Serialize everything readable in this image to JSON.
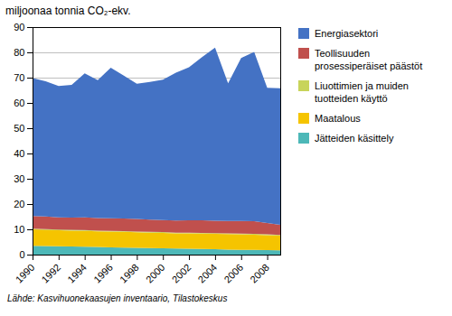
{
  "chart_data": {
    "type": "area",
    "stacked": true,
    "ylabel": "miljoonaa tonnia CO₂-ekv.",
    "source": "Lähde: Kasvihuonekaasujen inventaario,  Tilastokeskus",
    "x": [
      1990,
      1991,
      1992,
      1993,
      1994,
      1995,
      1996,
      1997,
      1998,
      1999,
      2000,
      2001,
      2002,
      2003,
      2004,
      2005,
      2006,
      2007,
      2008,
      2009
    ],
    "xlim": [
      1990,
      2009
    ],
    "xticks": [
      1990,
      1992,
      1994,
      1996,
      1998,
      2000,
      2002,
      2004,
      2006,
      2008
    ],
    "ylim": [
      0,
      90
    ],
    "yticks": [
      0,
      10,
      20,
      30,
      40,
      50,
      60,
      70,
      80,
      90
    ],
    "grid": true,
    "legend": "right",
    "series": [
      {
        "name": "Jätteiden käsittely",
        "color": "#4db8b8",
        "values": [
          3.5,
          3.4,
          3.3,
          3.2,
          3.1,
          3.0,
          2.9,
          2.8,
          2.7,
          2.6,
          2.5,
          2.4,
          2.3,
          2.2,
          2.1,
          2.0,
          1.9,
          1.9,
          1.8,
          1.7
        ]
      },
      {
        "name": "Maatalous",
        "color": "#f5c400",
        "values": [
          6.5,
          6.4,
          6.3,
          6.3,
          6.3,
          6.2,
          6.2,
          6.2,
          6.1,
          6.1,
          6.1,
          6.0,
          6.1,
          6.1,
          6.1,
          6.1,
          6.1,
          6.0,
          5.9,
          5.8
        ]
      },
      {
        "name": "Liuottimien ja muiden\ntuotteiden käyttö",
        "color": "#c8d45a",
        "values": [
          0.3,
          0.3,
          0.3,
          0.3,
          0.3,
          0.3,
          0.3,
          0.3,
          0.3,
          0.3,
          0.3,
          0.3,
          0.3,
          0.3,
          0.3,
          0.3,
          0.3,
          0.3,
          0.3,
          0.3
        ]
      },
      {
        "name": "Teollisuuden\nprosessiperäiset päästöt",
        "color": "#c0504d",
        "values": [
          5.0,
          5.0,
          4.8,
          4.8,
          5.0,
          5.0,
          5.0,
          5.0,
          5.0,
          4.8,
          4.8,
          4.8,
          4.9,
          5.0,
          4.9,
          4.9,
          5.0,
          5.0,
          4.5,
          4.0
        ]
      },
      {
        "name": "Energiasektori",
        "color": "#4472c4",
        "values": [
          54.5,
          53.5,
          52.0,
          52.5,
          57.0,
          54.5,
          59.5,
          56.5,
          53.5,
          54.5,
          55.5,
          58.5,
          60.5,
          64.5,
          68.5,
          54.5,
          64.5,
          67.0,
          53.5,
          54.0
        ]
      }
    ]
  }
}
